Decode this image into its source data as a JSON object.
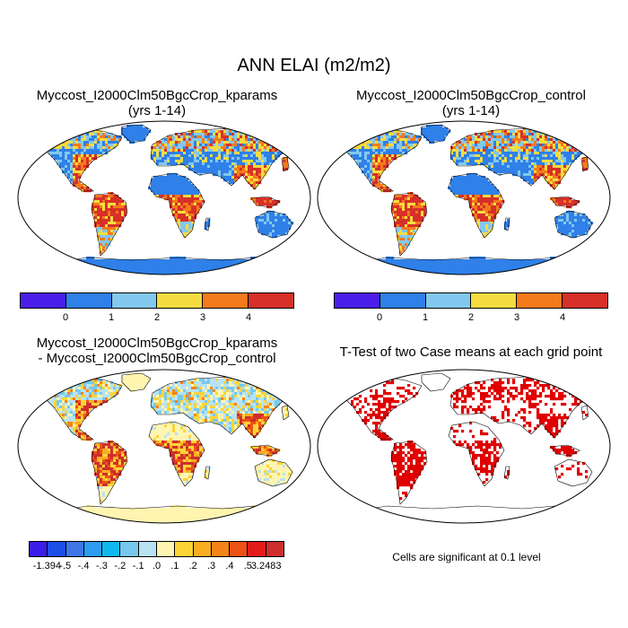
{
  "main_title": "ANN ELAI (m2/m2)",
  "panels": [
    {
      "id": "kparams",
      "title_line1": "Myccost_I2000Clm50BgcCrop_kparams",
      "title_line2": "(yrs 1-14)",
      "kind": "field"
    },
    {
      "id": "control",
      "title_line1": "Myccost_I2000Clm50BgcCrop_control",
      "title_line2": "(yrs 1-14)",
      "kind": "field"
    },
    {
      "id": "diff",
      "title_line1": "Myccost_I2000Clm50BgcCrop_kparams",
      "title_line2": "- Myccost_I2000Clm50BgcCrop_control",
      "kind": "diff"
    },
    {
      "id": "ttest",
      "title_line1": "T-Test of two Case means at each grid point",
      "title_line2": "",
      "kind": "ttest"
    }
  ],
  "colorbar_main": {
    "colors": [
      "#4a1ee8",
      "#2f80e8",
      "#83c8ee",
      "#f5dc40",
      "#f57a1a",
      "#d63028"
    ],
    "labels": [
      "0",
      "1",
      "2",
      "3",
      "4"
    ]
  },
  "colorbar_diff": {
    "colors": [
      "#3b1ee8",
      "#1c4fe8",
      "#3f78e6",
      "#2e9cf2",
      "#10b8f0",
      "#76c8ee",
      "#b8e2f4",
      "#fff5b0",
      "#fcd438",
      "#f8ad22",
      "#f48418",
      "#ee5214",
      "#e41b1b",
      "#ce2e2e"
    ],
    "labels": [
      "-1.394",
      "-.5",
      "-.4",
      "-.3",
      "-.2",
      "-.1",
      ".0",
      ".1",
      ".2",
      ".3",
      ".4",
      ".5",
      "3.2483"
    ]
  },
  "significance_note": "Cells are significant at 0.1 level",
  "colors": {
    "ocean": "#ffffff",
    "land_low": "#2f80e8",
    "diff_base": "#fff5b0",
    "sig": "#e00000"
  }
}
